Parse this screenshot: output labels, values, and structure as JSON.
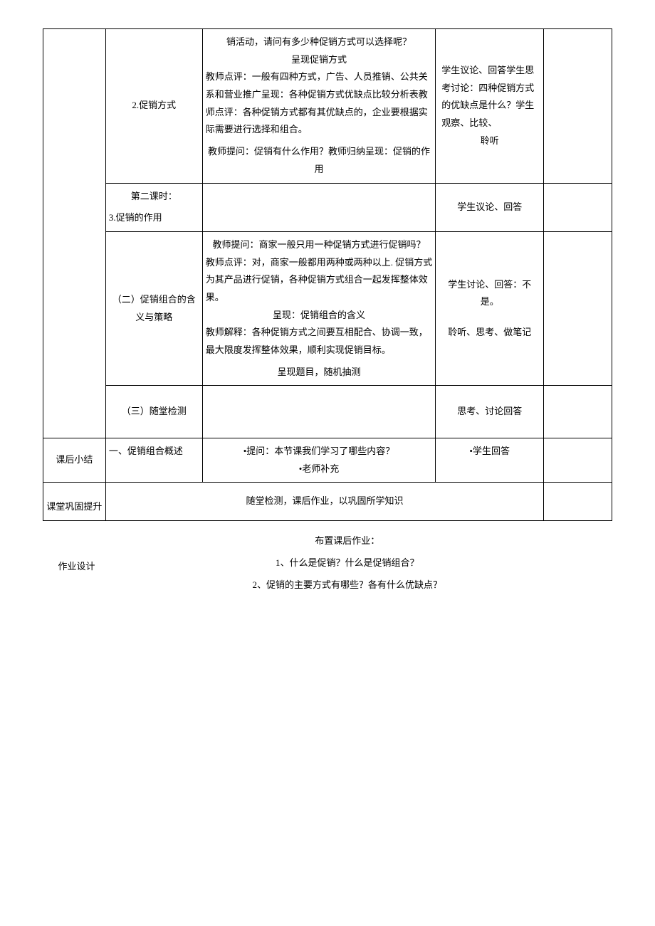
{
  "row1": {
    "colB": "2.促销方式",
    "colC_l1": "销活动，请问有多少种促销方式可以选择呢？",
    "colC_l2": "呈现促销方式",
    "colC_l3": "教师点评：一般有四种方式，广告、人员推销、公共关系和营业推广呈现：各种促销方式优缺点比较分析表教师点评：各种促销方式都有其优缺点的，企业要根据实际需要进行选择和组合。",
    "colC_blank": "",
    "colC_l4": "教师提问：促销有什么作用？教师归纳呈现：促销的作用",
    "colD_l1": "学生议论、回答学生思考讨论：四种促销方式的优缺点是什么？学生观察、比较、",
    "colD_l2": "聆听"
  },
  "row2": {
    "colB_l1": "第二课时：",
    "colB_l2": "3.促销的作用",
    "colD": "学生议论、回答"
  },
  "row3": {
    "colB_l1": "（二）促销组合的含义与策略",
    "colC_l1": "教师提问：商家一般只用一种促销方式进行促销吗？",
    "colC_l2": "教师点评：对，商家一般都用两种或两种以上. 促销方式为其产品进行促销，各种促销方式组合一起发挥整体效果。",
    "colC_l3": "呈现：促销组合的含义",
    "colC_l4": "教师解释：各种促销方式之间要互相配合、协调一致，最大限度发挥整体效果，顺利实现促销目标。",
    "colC_l5": "呈现题目，随机抽测",
    "colD_l1": "学生讨论、回答：不是。",
    "colD_l2": "聆听、思考、做笔记"
  },
  "row4": {
    "colB": "（三）随堂检测",
    "colD": "思考、讨论回答"
  },
  "row5": {
    "colA": "课后小结",
    "colB": "一、促销组合概述",
    "colC_l1": "•提问：本节课我们学习了哪些内容？",
    "colC_l2": "•老师补充",
    "colD": "•学生回答"
  },
  "row6": {
    "colA": "课堂巩固提升",
    "colC": "随堂检测，课后作业，以巩固所学知识"
  },
  "homework": {
    "label": "作业设计",
    "l1": "布置课后作业：",
    "l2": "1、什么是促销？什么是促销组合？",
    "l3": "2、促销的主要方式有哪些？各有什么优缺点？"
  }
}
